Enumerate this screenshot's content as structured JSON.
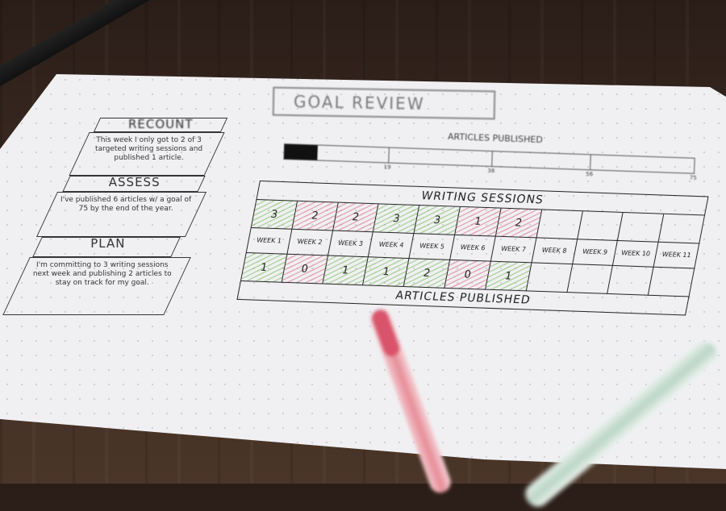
{
  "title": "GOAL REVIEW",
  "progress": {
    "label": "ARTICLES PUBLISHED",
    "value": 6,
    "goal": 75,
    "ticks": [
      "19",
      "38",
      "56",
      "75"
    ]
  },
  "left_panel": {
    "sections": [
      {
        "heading": "RECOUNT",
        "text": "This week I only got to 2 of 3 targeted writing sessions and published 1 article."
      },
      {
        "heading": "ASSESS",
        "text": "I've published 6 articles w/ a goal of 75 by the end of the year."
      },
      {
        "heading": "PLAN",
        "text": "I'm committing to 3 writing sessions next week and publishing 2 articles to stay on track for my goal."
      }
    ]
  },
  "table": {
    "header": "WRITING SESSIONS",
    "footer": "ARTICLES PUBLISHED",
    "weeks": [
      "WEEK 1",
      "WEEK 2",
      "WEEK 3",
      "WEEK 4",
      "WEEK 5",
      "WEEK 6",
      "WEEK 7",
      "WEEK 8",
      "WEEK 9",
      "WEEK 10",
      "WEEK 11"
    ],
    "sessions": [
      "3",
      "2",
      "2",
      "3",
      "3",
      "1",
      "2",
      "",
      "",
      "",
      ""
    ],
    "session_status": [
      "green",
      "red",
      "red",
      "green",
      "green",
      "red",
      "red",
      "",
      "",
      "",
      ""
    ],
    "articles": [
      "1",
      "0",
      "1",
      "1",
      "2",
      "0",
      "1",
      "",
      "",
      "",
      ""
    ],
    "article_status": [
      "green",
      "red",
      "green",
      "green",
      "green",
      "red",
      "green",
      "",
      "",
      "",
      ""
    ]
  },
  "colors": {
    "met": "#8cc46a",
    "missed": "#de7a8c",
    "paper": "#f0f0f3",
    "desk": "#3b2a22"
  }
}
